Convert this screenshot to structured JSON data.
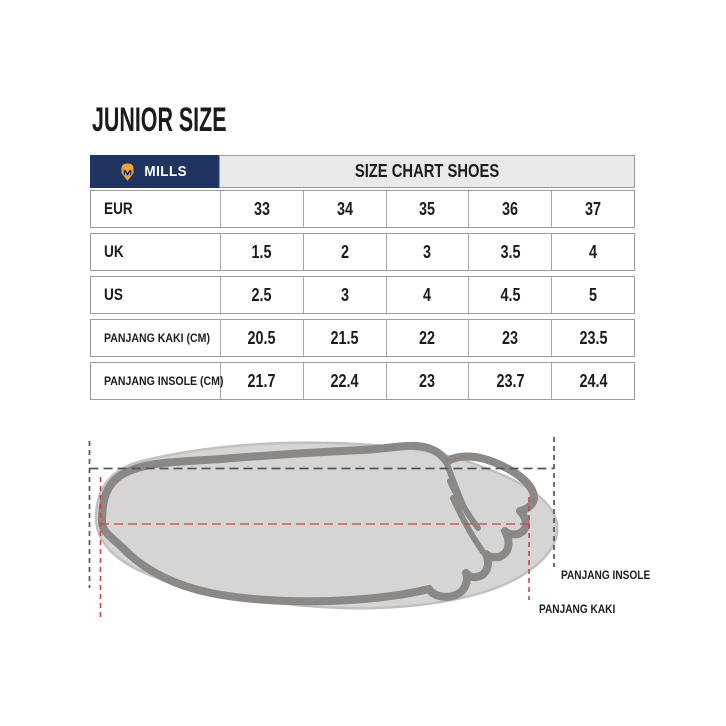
{
  "title": "JUNIOR SIZE",
  "table": {
    "brand": "MILLS",
    "header": "SIZE CHART SHOES",
    "rows": [
      {
        "label": "EUR",
        "values": [
          "33",
          "34",
          "35",
          "36",
          "37"
        ]
      },
      {
        "label": "UK",
        "values": [
          "1.5",
          "2",
          "3",
          "3.5",
          "4"
        ]
      },
      {
        "label": "US",
        "values": [
          "2.5",
          "3",
          "4",
          "4.5",
          "5"
        ]
      },
      {
        "label": "PANJANG KAKI (CM)",
        "values": [
          "20.5",
          "21.5",
          "22",
          "23",
          "23.5"
        ]
      },
      {
        "label": "PANJANG INSOLE (CM)",
        "values": [
          "21.7",
          "22.4",
          "23",
          "23.7",
          "24.4"
        ]
      }
    ]
  },
  "diagram": {
    "insole_label": "PANJANG INSOLE",
    "kaki_label": "PANJANG KAKI"
  },
  "colors": {
    "navy": "#1f3460",
    "gold": "#EAA63E",
    "header_gray": "#e9e9eb",
    "border": "#9b9b9b",
    "insole_fill": "#d7d5d3",
    "insole_edge": "#c3c1bf",
    "foot_outline": "#8b8886",
    "dash_gray": "#4d5663",
    "dash_red": "#c94747"
  }
}
